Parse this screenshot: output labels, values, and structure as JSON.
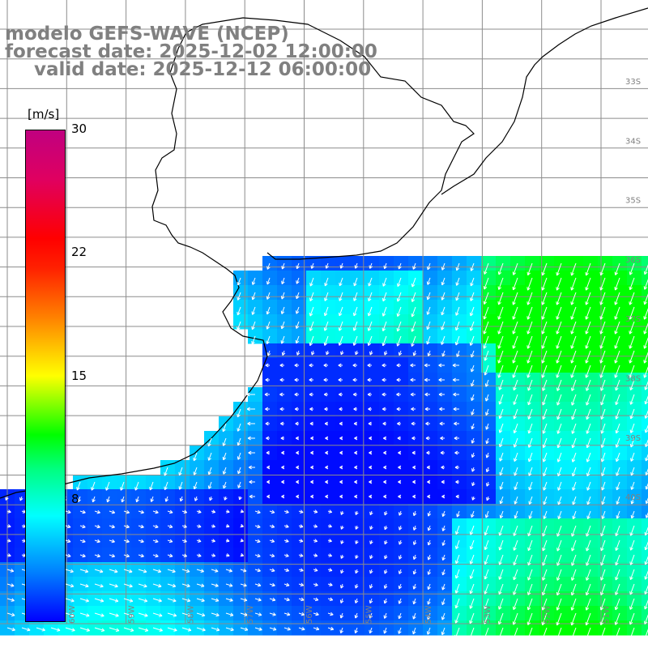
{
  "header": {
    "line1": "modelo GEFS-WAVE (NCEP)",
    "line2": "forecast date: 2025-12-02 12:00:00",
    "line3": "valid date: 2025-12-12 06:00:00"
  },
  "colorbar": {
    "unit": "[m/s]",
    "ticks": [
      "30",
      "22",
      "15",
      "8"
    ],
    "colors": [
      "#0000ff",
      "#0080ff",
      "#00ffff",
      "#00ff80",
      "#00ff00",
      "#ffff00",
      "#ff8000",
      "#ff0000",
      "#c00080"
    ]
  },
  "axes": {
    "lat_labels": [
      "33S",
      "34S",
      "35S",
      "36S",
      "37S",
      "38S",
      "39S",
      "40S"
    ],
    "lon_labels": [
      "60W",
      "59W",
      "58W",
      "57W",
      "56W",
      "55W",
      "54W",
      "53W",
      "52W",
      "51W"
    ]
  },
  "map": {
    "land_color": "#ffffff",
    "grid_color": "#8c8c8c",
    "coast_color": "#000000",
    "vector_color": "#ffffff"
  }
}
